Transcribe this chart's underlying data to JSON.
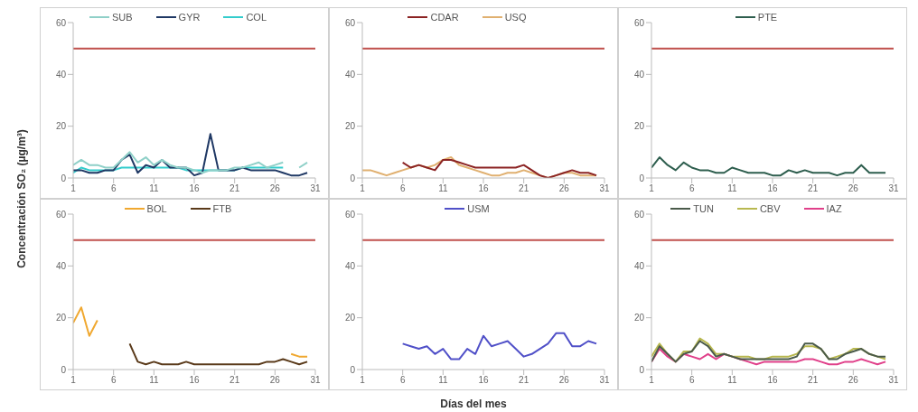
{
  "chart_data": [
    {
      "type": "line",
      "ylabel": "Concentración SO₂ (µg/m³)",
      "x": [
        1,
        2,
        3,
        4,
        5,
        6,
        7,
        8,
        9,
        10,
        11,
        12,
        13,
        14,
        15,
        16,
        17,
        18,
        19,
        20,
        21,
        22,
        23,
        24,
        25,
        26,
        27,
        28,
        29,
        30
      ],
      "xlim": [
        1,
        31
      ],
      "xticks": [
        1,
        6,
        11,
        16,
        21,
        26,
        31
      ],
      "ylim": [
        0,
        60
      ],
      "yticks": [
        0,
        20,
        40,
        60
      ],
      "legend": "top",
      "ref_lines": [
        {
          "axis": "y",
          "value": 50,
          "color": "#c0504d"
        }
      ],
      "series": [
        {
          "name": "SUB",
          "color": "#8fd0c8",
          "values": [
            5,
            7,
            5,
            5,
            4,
            4,
            7,
            10,
            6,
            8,
            5,
            7,
            5,
            4,
            4,
            3,
            2,
            3,
            3,
            3,
            4,
            4,
            5,
            6,
            4,
            5,
            6,
            null,
            4,
            6
          ]
        },
        {
          "name": "GYR",
          "color": "#1f3864",
          "values": [
            3,
            3,
            2,
            2,
            3,
            3,
            7,
            9,
            2,
            5,
            4,
            7,
            4,
            4,
            4,
            1,
            2,
            17,
            3,
            3,
            3,
            4,
            3,
            3,
            3,
            3,
            2,
            1,
            1,
            2
          ]
        },
        {
          "name": "COL",
          "color": "#33cccc",
          "values": [
            2,
            4,
            3,
            3,
            3,
            3,
            4,
            4,
            4,
            4,
            4,
            4,
            4,
            4,
            3,
            3,
            3,
            3,
            3,
            3,
            3,
            4,
            4,
            4,
            4,
            4,
            4,
            null,
            null,
            null
          ]
        }
      ]
    },
    {
      "type": "line",
      "x": [
        1,
        2,
        3,
        4,
        5,
        6,
        7,
        8,
        9,
        10,
        11,
        12,
        13,
        14,
        15,
        16,
        17,
        18,
        19,
        20,
        21,
        22,
        23,
        24,
        25,
        26,
        27,
        28,
        29,
        30
      ],
      "xlim": [
        1,
        31
      ],
      "xticks": [
        1,
        6,
        11,
        16,
        21,
        26,
        31
      ],
      "ylim": [
        0,
        60
      ],
      "yticks": [
        0,
        20,
        40,
        60
      ],
      "legend": "top",
      "ref_lines": [
        {
          "axis": "y",
          "value": 50,
          "color": "#c0504d"
        }
      ],
      "series": [
        {
          "name": "CDAR",
          "color": "#8b2323",
          "values": [
            null,
            null,
            null,
            null,
            null,
            6,
            4,
            5,
            4,
            3,
            7,
            7,
            6,
            5,
            4,
            4,
            4,
            4,
            4,
            4,
            5,
            3,
            1,
            0,
            1,
            2,
            3,
            2,
            2,
            1
          ]
        },
        {
          "name": "USQ",
          "color": "#e0b070",
          "values": [
            3,
            3,
            2,
            1,
            2,
            3,
            4,
            5,
            4,
            5,
            7,
            8,
            5,
            4,
            3,
            2,
            1,
            1,
            2,
            2,
            3,
            2,
            1,
            0,
            1,
            2,
            2,
            1,
            1,
            1
          ]
        }
      ]
    },
    {
      "type": "line",
      "x": [
        1,
        2,
        3,
        4,
        5,
        6,
        7,
        8,
        9,
        10,
        11,
        12,
        13,
        14,
        15,
        16,
        17,
        18,
        19,
        20,
        21,
        22,
        23,
        24,
        25,
        26,
        27,
        28,
        29,
        30
      ],
      "xlim": [
        1,
        31
      ],
      "xticks": [
        1,
        6,
        11,
        16,
        21,
        26,
        31
      ],
      "ylim": [
        0,
        60
      ],
      "yticks": [
        0,
        20,
        40,
        60
      ],
      "legend": "top",
      "ref_lines": [
        {
          "axis": "y",
          "value": 50,
          "color": "#c0504d"
        }
      ],
      "series": [
        {
          "name": "PTE",
          "color": "#2e5e4e",
          "values": [
            4,
            8,
            5,
            3,
            6,
            4,
            3,
            3,
            2,
            2,
            4,
            3,
            2,
            2,
            2,
            1,
            1,
            3,
            2,
            3,
            2,
            2,
            2,
            1,
            2,
            2,
            5,
            2,
            2,
            2
          ]
        }
      ]
    },
    {
      "type": "line",
      "xlim": [
        1,
        31
      ],
      "xticks": [
        1,
        6,
        11,
        16,
        21,
        26,
        31
      ],
      "ylim": [
        0,
        60
      ],
      "yticks": [
        0,
        20,
        40,
        60
      ],
      "legend": "top",
      "ref_lines": [
        {
          "axis": "y",
          "value": 50,
          "color": "#c0504d"
        }
      ],
      "series": [
        {
          "name": "BOL",
          "color": "#f0a830",
          "x": [
            1,
            2,
            3,
            4
          ],
          "values": [
            18,
            24,
            13,
            19
          ]
        },
        {
          "color": "#f0a830",
          "x": [
            28,
            29,
            30
          ],
          "values": [
            6,
            5,
            5
          ]
        },
        {
          "name": "FTB",
          "color": "#5a3a1a",
          "x": [
            8,
            9,
            10,
            11,
            12,
            13,
            14,
            15,
            16,
            17,
            18,
            19,
            20,
            21,
            22,
            23,
            24,
            25,
            26,
            27,
            28,
            29,
            30
          ],
          "values": [
            10,
            3,
            2,
            3,
            2,
            2,
            2,
            3,
            2,
            2,
            2,
            2,
            2,
            2,
            2,
            2,
            2,
            3,
            3,
            4,
            3,
            2,
            3
          ]
        }
      ]
    },
    {
      "type": "line",
      "xlabel": "Días del mes",
      "x": [
        6,
        7,
        8,
        9,
        10,
        11,
        12,
        13,
        14,
        15,
        16,
        17,
        18,
        19,
        20,
        21,
        22,
        23,
        24,
        25,
        26,
        27,
        28,
        29,
        30
      ],
      "xlim": [
        1,
        31
      ],
      "xticks": [
        1,
        6,
        11,
        16,
        21,
        26,
        31
      ],
      "ylim": [
        0,
        60
      ],
      "yticks": [
        0,
        20,
        40,
        60
      ],
      "legend": "top",
      "ref_lines": [
        {
          "axis": "y",
          "value": 50,
          "color": "#c0504d"
        }
      ],
      "series": [
        {
          "name": "USM",
          "color": "#5050c8",
          "values": [
            10,
            9,
            8,
            9,
            6,
            8,
            4,
            4,
            8,
            6,
            13,
            9,
            10,
            11,
            8,
            5,
            6,
            8,
            10,
            14,
            14,
            9,
            9,
            11,
            10
          ]
        }
      ]
    },
    {
      "type": "line",
      "x": [
        1,
        2,
        3,
        4,
        5,
        6,
        7,
        8,
        9,
        10,
        11,
        12,
        13,
        14,
        15,
        16,
        17,
        18,
        19,
        20,
        21,
        22,
        23,
        24,
        25,
        26,
        27,
        28,
        29,
        30
      ],
      "xlim": [
        1,
        31
      ],
      "xticks": [
        1,
        6,
        11,
        16,
        21,
        26,
        31
      ],
      "ylim": [
        0,
        60
      ],
      "yticks": [
        0,
        20,
        40,
        60
      ],
      "legend": "top",
      "ref_lines": [
        {
          "axis": "y",
          "value": 50,
          "color": "#c0504d"
        }
      ],
      "series": [
        {
          "name": "TUN",
          "color": "#4a5a4a",
          "values": [
            3,
            9,
            6,
            3,
            6,
            7,
            11,
            9,
            5,
            6,
            5,
            4,
            4,
            4,
            4,
            4,
            4,
            4,
            5,
            10,
            10,
            8,
            4,
            4,
            6,
            7,
            8,
            6,
            5,
            5
          ]
        },
        {
          "name": "CBV",
          "color": "#b8b850",
          "values": [
            5,
            10,
            6,
            3,
            7,
            7,
            12,
            10,
            6,
            6,
            5,
            5,
            5,
            4,
            4,
            5,
            5,
            5,
            6,
            9,
            9,
            8,
            4,
            5,
            6,
            8,
            8,
            6,
            5,
            4
          ]
        },
        {
          "name": "IAZ",
          "color": "#e0408a",
          "values": [
            3,
            8,
            5,
            3,
            6,
            5,
            4,
            6,
            4,
            6,
            5,
            4,
            3,
            2,
            3,
            3,
            3,
            3,
            3,
            4,
            4,
            3,
            2,
            2,
            3,
            3,
            4,
            3,
            2,
            3
          ]
        }
      ]
    }
  ]
}
